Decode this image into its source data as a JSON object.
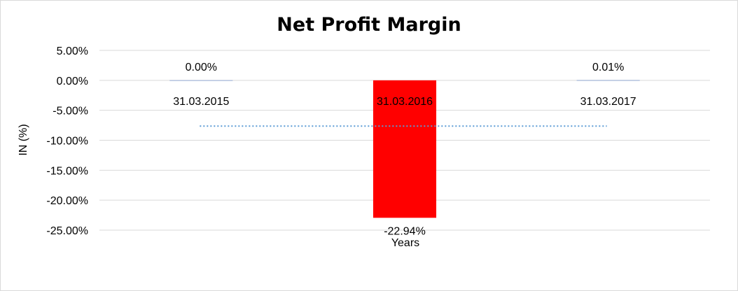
{
  "chart_data": {
    "type": "bar",
    "title": "Net Profit Margin",
    "xlabel": "Years",
    "ylabel": "IN (%)",
    "categories": [
      "31.03.2015",
      "31.03.2016",
      "31.03.2017"
    ],
    "values": [
      0.0,
      -22.94,
      0.01
    ],
    "data_labels": [
      "0.00%",
      "-22.94%",
      "0.01%"
    ],
    "ylim": [
      -25,
      5
    ],
    "yticks": [
      5,
      0,
      -5,
      -10,
      -15,
      -20,
      -25
    ],
    "ytick_labels": [
      "5.00%",
      "0.00%",
      "-5.00%",
      "-10.00%",
      "-15.00%",
      "-20.00%",
      "-25.00%"
    ],
    "grid": true,
    "legend": "none",
    "trendline": {
      "type": "moving-average",
      "style": "dotted",
      "color": "#5B9BD5",
      "level": -7.64
    },
    "colors": {
      "negative_bar": "#FF0000",
      "gridline": "#D9D9D9"
    }
  }
}
